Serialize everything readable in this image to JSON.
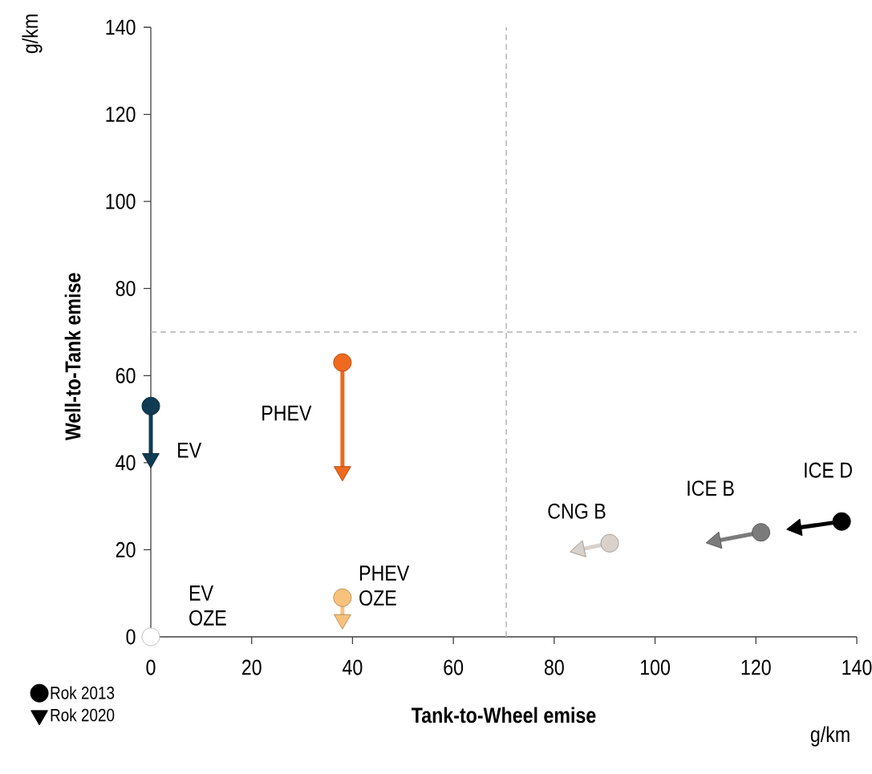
{
  "chart_data": {
    "type": "scatter",
    "xlabel": "Tank-to-Wheel emise",
    "ylabel": "Well-to-Tank emise",
    "xlim": [
      0,
      140
    ],
    "ylim": [
      0,
      140
    ],
    "xticks": [
      0,
      20,
      40,
      60,
      80,
      100,
      120,
      140
    ],
    "yticks": [
      0,
      20,
      40,
      60,
      80,
      100,
      120,
      140
    ],
    "legend": "bottom left",
    "series": [
      {
        "name": "Rok 2013",
        "color": "#000000",
        "marker": "circle",
        "x": [
          0,
          38,
          0,
          38,
          91,
          121,
          137
        ],
        "values": [
          53,
          63,
          0,
          9,
          21.5,
          24,
          26.5
        ],
        "colors": [
          "#0f3b53",
          "#ef6a1e",
          "#ffffff",
          "#f8c27c",
          "#d9d2cc",
          "#7b7b7b",
          "#000000"
        ]
      },
      {
        "name": "Rok 2020",
        "color": "#000000",
        "marker": "triangle",
        "x": [
          0,
          38,
          null,
          38,
          85,
          112,
          128
        ],
        "values": [
          41,
          38,
          null,
          4,
          20,
          22,
          25
        ],
        "colors": [
          "#0f3b53",
          "#ef6a1e",
          "#ffffff",
          "#f8c27c",
          "#d9d2cc",
          "#7b7b7b",
          "#000000"
        ]
      },
      {
        "type": "line",
        "color": "#0f3b53",
        "x": [
          0,
          0
        ],
        "values": [
          53,
          41
        ]
      },
      {
        "type": "line",
        "color": "#ef6a1e",
        "x": [
          38,
          38
        ],
        "values": [
          63,
          38
        ]
      },
      {
        "type": "line",
        "color": "#f8c27c",
        "x": [
          38,
          38
        ],
        "values": [
          9,
          4
        ]
      },
      {
        "type": "line",
        "color": "#d9d2cc",
        "x": [
          91,
          85
        ],
        "values": [
          21.5,
          20
        ]
      },
      {
        "type": "line",
        "color": "#7b7b7b",
        "x": [
          121,
          112
        ],
        "values": [
          24,
          22
        ]
      },
      {
        "type": "line",
        "color": "#000000",
        "x": [
          137,
          128
        ],
        "values": [
          26.5,
          25
        ]
      }
    ],
    "ref_lines": [
      {
        "axis": "x",
        "value": 70.5,
        "color": "#b4b4b4",
        "line_style": "dashed"
      },
      {
        "axis": "y",
        "value": 70,
        "color": "#b4b4b4",
        "line_style": "dashed"
      }
    ],
    "annotations": [
      {
        "text": "EV",
        "x": 0,
        "y": 53
      },
      {
        "text": "PHEV",
        "x": 38,
        "y": 63
      },
      {
        "text": "EV OZE",
        "x": 0,
        "y": 0
      },
      {
        "text": "PHEV OZE",
        "x": 38,
        "y": 9
      },
      {
        "text": "CNG B",
        "x": 91,
        "y": 21.5
      },
      {
        "text": "ICE B",
        "x": 121,
        "y": 24
      },
      {
        "text": "ICE D",
        "x": 137,
        "y": 26.5
      },
      "g/km",
      "g/km"
    ]
  }
}
